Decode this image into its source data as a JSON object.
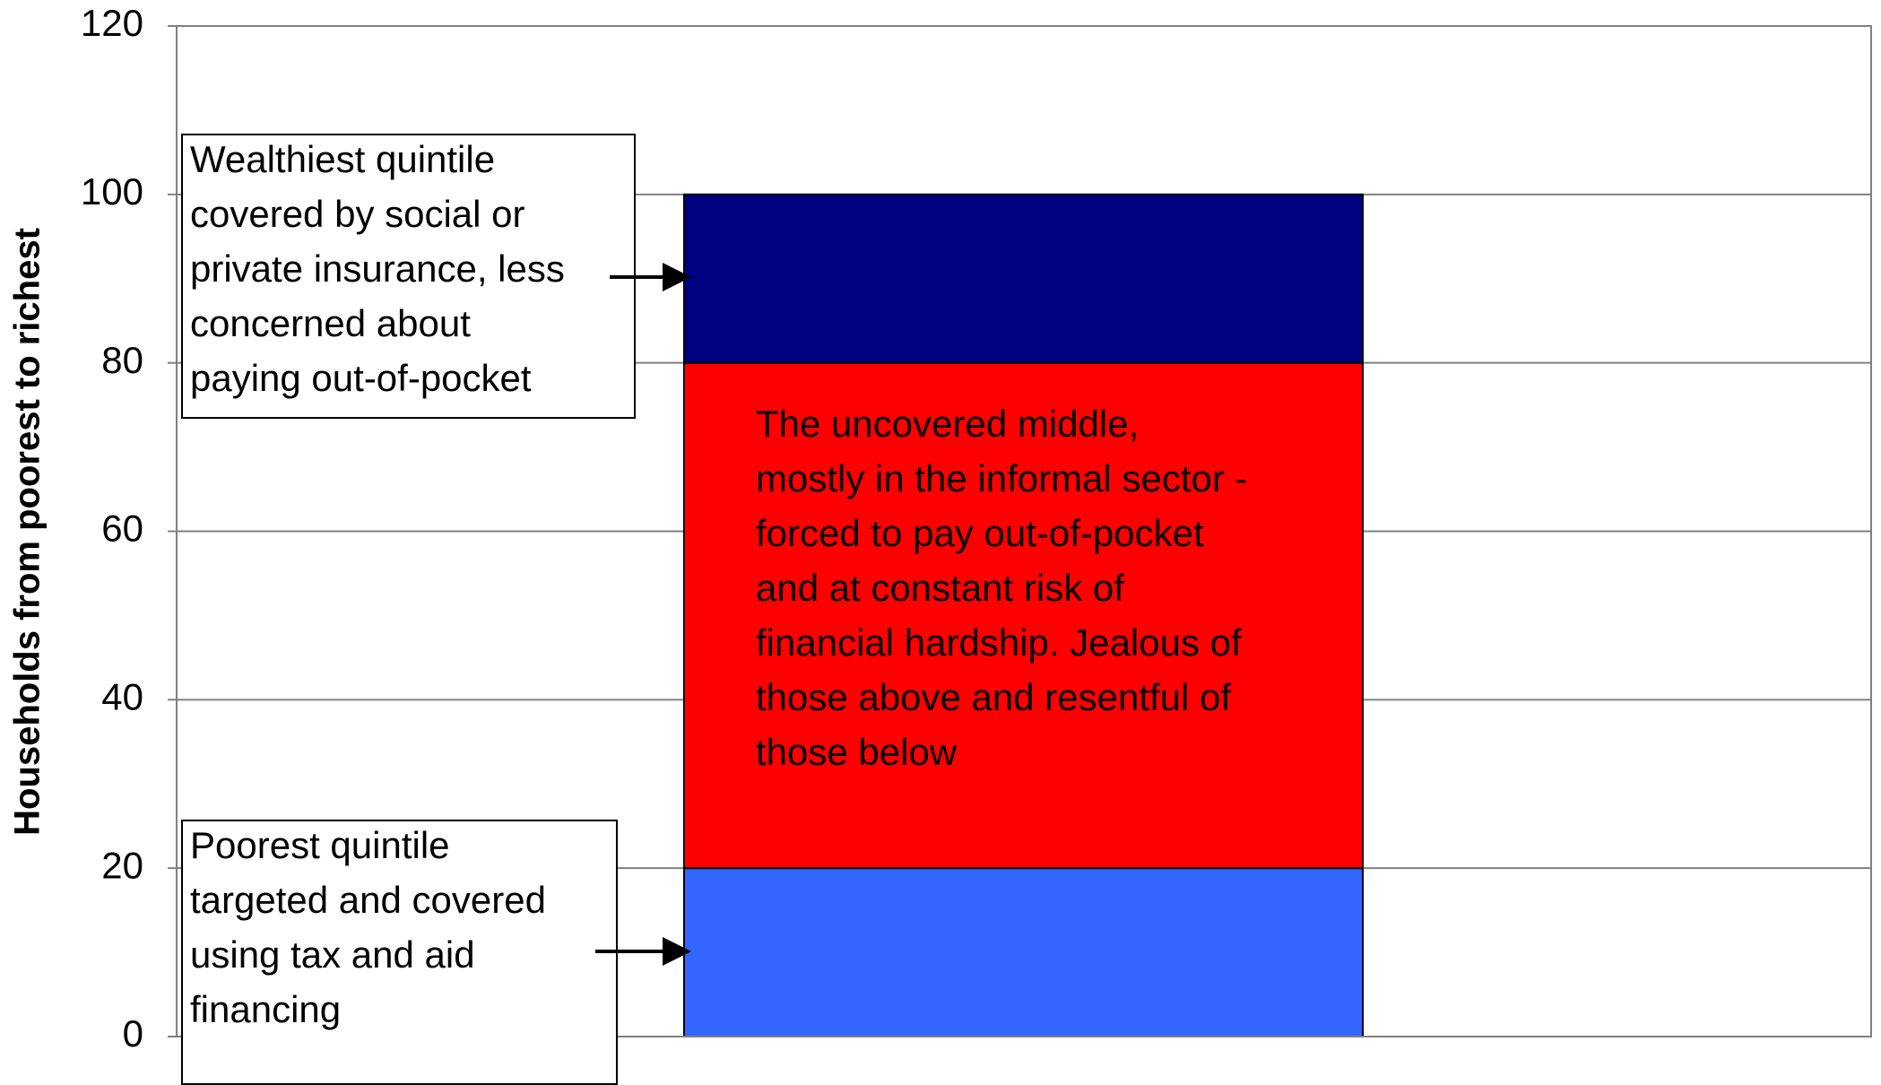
{
  "chart_data": {
    "type": "bar",
    "stacked": true,
    "ylabel": "Households from poorest to richest",
    "categories": [
      null
    ],
    "series": [
      {
        "color": "#3366ff",
        "values": [
          20
        ]
      },
      {
        "color": "#ff0000",
        "values": [
          60
        ]
      },
      {
        "color": "#000080",
        "values": [
          20
        ]
      }
    ],
    "ylim": [
      0,
      120
    ],
    "yticks": [
      0,
      20,
      40,
      60,
      80,
      100,
      120
    ],
    "grid": true,
    "annotations": [
      {
        "lines": [
          "Wealthiest quintile",
          "covered by social or",
          "private insurance, less",
          "concerned about",
          "paying out-of-pocket"
        ]
      },
      {
        "lines": [
          "The uncovered middle,",
          "mostly in the informal sector -",
          "forced to pay out-of-pocket",
          "and at constant risk of",
          "financial hardship. Jealous of",
          "those above and resentful of",
          "those below"
        ]
      },
      {
        "lines": [
          "Poorest quintile",
          "targeted and covered",
          "using tax and aid",
          "financing"
        ]
      }
    ]
  }
}
